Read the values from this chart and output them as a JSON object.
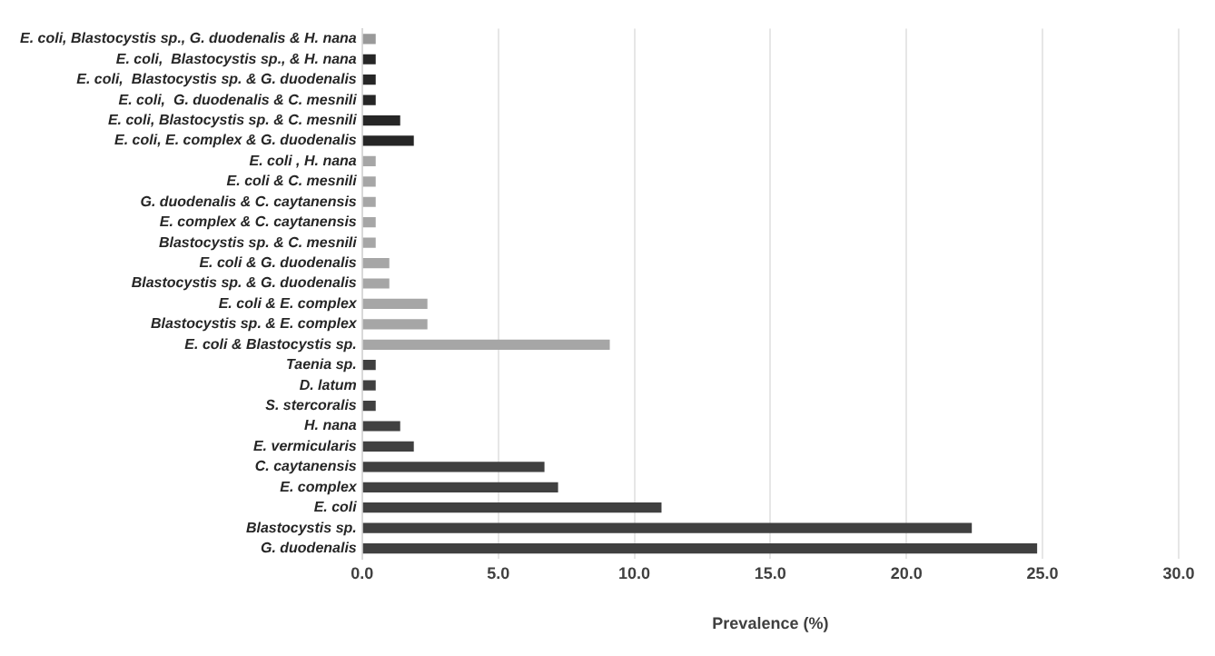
{
  "chart_data": {
    "type": "bar",
    "orientation": "horizontal",
    "xlabel": "Prevalence (%)",
    "categories": [
      "E. coli, Blastocystis sp., G. duodenalis & H. nana",
      "E. coli,  Blastocystis sp., & H. nana",
      "E. coli,  Blastocystis sp. & G. duodenalis",
      "E. coli,  G. duodenalis & C. mesnili",
      "E. coli, Blastocystis sp. & C. mesnili",
      "E. coli, E. complex & G. duodenalis",
      "E. coli , H. nana",
      "E. coli & C. mesnili",
      "G. duodenalis & C. caytanensis",
      "E. complex & C. caytanensis",
      "Blastocystis sp. & C. mesnili",
      "E. coli & G. duodenalis",
      "Blastocystis sp. & G. duodenalis",
      "E. coli & E. complex",
      "Blastocystis sp. & E. complex",
      "E. coli & Blastocystis sp.",
      "Taenia sp.",
      "D. latum",
      "S. stercoralis",
      "H. nana",
      "E. vermicularis",
      "C. caytanensis",
      "E. complex",
      "E. coli",
      "Blastocystis sp.",
      "G. duodenalis"
    ],
    "values": [
      0.5,
      0.5,
      0.5,
      0.5,
      1.4,
      1.9,
      0.5,
      0.5,
      0.5,
      0.5,
      0.5,
      1.0,
      1.0,
      2.4,
      2.4,
      9.1,
      0.5,
      0.5,
      0.5,
      1.4,
      1.9,
      6.7,
      7.2,
      11.0,
      22.4,
      24.8
    ],
    "colors": [
      "#999999",
      "#262626",
      "#262626",
      "#262626",
      "#262626",
      "#262626",
      "#a6a6a6",
      "#a6a6a6",
      "#a6a6a6",
      "#a6a6a6",
      "#a6a6a6",
      "#a6a6a6",
      "#a6a6a6",
      "#a6a6a6",
      "#a6a6a6",
      "#a6a6a6",
      "#404040",
      "#404040",
      "#404040",
      "#404040",
      "#404040",
      "#404040",
      "#404040",
      "#404040",
      "#404040",
      "#404040"
    ],
    "xlim": [
      0,
      30
    ],
    "xticks": [
      {
        "value": 0,
        "label": "0.0"
      },
      {
        "value": 5,
        "label": "5.0"
      },
      {
        "value": 10,
        "label": "10.0"
      },
      {
        "value": 15,
        "label": "15.0"
      },
      {
        "value": 20,
        "label": "20.0"
      },
      {
        "value": 25,
        "label": "25.0"
      },
      {
        "value": 30,
        "label": "30.0"
      }
    ],
    "grid": "x"
  }
}
